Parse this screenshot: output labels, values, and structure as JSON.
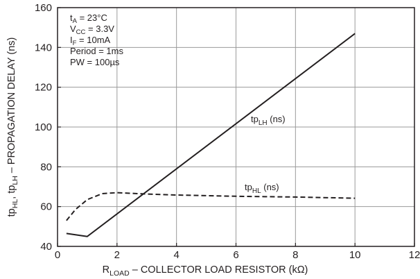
{
  "chart_data": {
    "type": "line",
    "xlabel": {
      "main": "R",
      "sub": "LOAD",
      "rest": " – COLLECTOR LOAD RESISTOR (kΩ)"
    },
    "ylabel": {
      "p1": "tp",
      "s1": "HL",
      "p2": ", tp",
      "s2": "LH",
      "p3": " – PROPAGATION DELAY (ns)"
    },
    "xlim": [
      0,
      12
    ],
    "ylim": [
      40,
      160
    ],
    "x_ticks": [
      "0",
      "2",
      "4",
      "6",
      "8",
      "10",
      "12"
    ],
    "y_ticks": [
      "40",
      "60",
      "80",
      "100",
      "120",
      "140",
      "160"
    ],
    "grid": true,
    "conditions": [
      {
        "pre": "t",
        "sub": "A",
        "post": " = 23°C"
      },
      {
        "pre": "V",
        "sub": "CC",
        "post": " = 3.3V"
      },
      {
        "pre": "I",
        "sub": "F",
        "post": " = 10mA"
      },
      {
        "pre": "Period = 1ms",
        "sub": "",
        "post": ""
      },
      {
        "pre": "PW = 100µs",
        "sub": "",
        "post": ""
      }
    ],
    "series": [
      {
        "label_pre": "tp",
        "label_sub": "LH",
        "label_post": " (ns)",
        "style": "solid",
        "x": [
          0.3,
          1.0,
          10.0
        ],
        "y": [
          46.5,
          45.0,
          147.0
        ]
      },
      {
        "label_pre": "tp",
        "label_sub": "HL",
        "label_post": " (ns)",
        "style": "dashed",
        "x": [
          0.3,
          0.6,
          1.0,
          1.5,
          2.0,
          3.0,
          4.0,
          6.0,
          8.0,
          10.0
        ],
        "y": [
          53.0,
          58.5,
          63.5,
          66.5,
          67.0,
          66.3,
          65.8,
          65.2,
          64.8,
          64.2
        ]
      }
    ]
  }
}
